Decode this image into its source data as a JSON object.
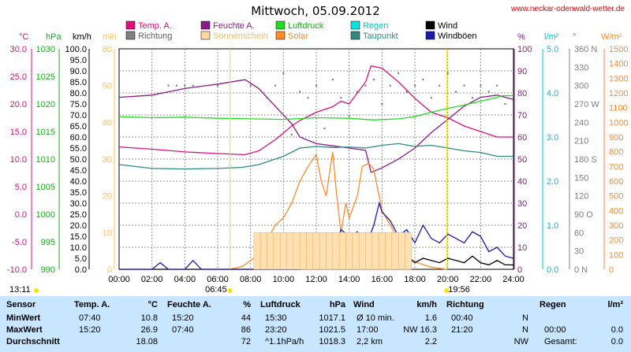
{
  "title": "Mittwoch, 05.09.2012",
  "site": "www.neckar-odenwald-wetter.de",
  "legend": [
    {
      "name": "Temp. A.",
      "color": "#e0107a"
    },
    {
      "name": "Feuchte A.",
      "color": "#8b1a8b"
    },
    {
      "name": "Luftdruck",
      "color": "#22dd22"
    },
    {
      "name": "Regen",
      "color": "#00e5e5"
    },
    {
      "name": "Wind",
      "color": "#000000"
    },
    {
      "name": "Richtung",
      "color": "#808080"
    },
    {
      "name": "Sonnenschein",
      "color": "#ffd8a0"
    },
    {
      "name": "Solar",
      "color": "#ff8c28"
    },
    {
      "name": "Taupunkt",
      "color": "#2e8b80"
    },
    {
      "name": "Windböen",
      "color": "#1a1aa8"
    }
  ],
  "axes": {
    "temp": {
      "unit": "°C",
      "ticks": [
        "30.0",
        "25.0",
        "20.0",
        "15.0",
        "10.0",
        "5.0",
        "0.0",
        "-5.0",
        "-10.0"
      ],
      "color": "#e0107a"
    },
    "press": {
      "unit": "hPa",
      "ticks": [
        "1030",
        "1025",
        "1020",
        "1015",
        "1010",
        "1005",
        "1000",
        "995",
        "990"
      ],
      "color": "#22aa22"
    },
    "wind": {
      "unit": "km/h",
      "ticks": [
        "100.0",
        "95.0",
        "90.0",
        "85.0",
        "80.0",
        "75.0",
        "70.0",
        "65.0",
        "60.0",
        "55.0",
        "50.0",
        "45.0",
        "40.0",
        "35.0",
        "30.0",
        "25.0",
        "20.0",
        "15.0",
        "10.0",
        "5.0",
        "0.0"
      ],
      "color": "#000000"
    },
    "sun": {
      "unit": "min",
      "ticks": [
        "60",
        "50",
        "40",
        "30",
        "20",
        "10",
        "0"
      ],
      "color": "#ffc060"
    },
    "hum": {
      "unit": "%",
      "ticks": [
        "100",
        "90",
        "80",
        "70",
        "60",
        "50",
        "40",
        "30",
        "20",
        "10",
        "0"
      ],
      "color": "#8b1a8b"
    },
    "rain": {
      "unit": "l/m²",
      "ticks": [
        "5.0",
        "4.0",
        "3.0",
        "2.0",
        "1.0",
        "0.0"
      ],
      "color": "#00c8c8"
    },
    "dir": {
      "unit": "°",
      "ticks": [
        "360 N",
        "330",
        "300",
        "270 W",
        "240",
        "210",
        "180 S",
        "150",
        "120",
        "90 O",
        "60",
        "30",
        "0 N"
      ],
      "color": "#808080"
    },
    "solar": {
      "unit": "W/m²",
      "ticks": [
        "1500",
        "1400",
        "1300",
        "1200",
        "1100",
        "1000",
        "900",
        "800",
        "700",
        "600",
        "500",
        "400",
        "300",
        "200",
        "100",
        "0"
      ],
      "color": "#ff8c28"
    },
    "time": [
      "00:00",
      "02:00",
      "04:00",
      "06:00",
      "08:00",
      "10:00",
      "12:00",
      "14:00",
      "16:00",
      "18:00",
      "20:00",
      "22:00",
      "24:00"
    ]
  },
  "sun_events": {
    "sunrise": "06:45",
    "sunset": "19:56",
    "daylength": "13:11"
  },
  "chart_data": {
    "type": "line",
    "x_unit": "hour",
    "series": [
      {
        "name": "Temp. A.",
        "axis": "temp",
        "values": [
          [
            0,
            12.2
          ],
          [
            2,
            11.8
          ],
          [
            4,
            11.3
          ],
          [
            6,
            11.0
          ],
          [
            7.67,
            10.8
          ],
          [
            8.5,
            11.5
          ],
          [
            9.5,
            13.5
          ],
          [
            10.5,
            16.0
          ],
          [
            11,
            17.0
          ],
          [
            12,
            18.5
          ],
          [
            13,
            19.5
          ],
          [
            13.5,
            20.5
          ],
          [
            14,
            20.0
          ],
          [
            14.5,
            22.0
          ],
          [
            15,
            24.0
          ],
          [
            15.33,
            26.9
          ],
          [
            16,
            26.5
          ],
          [
            17,
            24.0
          ],
          [
            18,
            21.0
          ],
          [
            19,
            18.5
          ],
          [
            20,
            17.5
          ],
          [
            21,
            16.0
          ],
          [
            22,
            15.0
          ],
          [
            23,
            14.0
          ],
          [
            24,
            14.0
          ]
        ]
      },
      {
        "name": "Feuchte A.",
        "axis": "hum",
        "values": [
          [
            0,
            78
          ],
          [
            2,
            79
          ],
          [
            4,
            82
          ],
          [
            6,
            84
          ],
          [
            7.67,
            86
          ],
          [
            8.5,
            82
          ],
          [
            9.5,
            74
          ],
          [
            10.5,
            66
          ],
          [
            11,
            60
          ],
          [
            12,
            57
          ],
          [
            13,
            56
          ],
          [
            14,
            55
          ],
          [
            15,
            54
          ],
          [
            15.33,
            44
          ],
          [
            16,
            46
          ],
          [
            17,
            50
          ],
          [
            18,
            55
          ],
          [
            19,
            62
          ],
          [
            20,
            68
          ],
          [
            21,
            74
          ],
          [
            22,
            78
          ],
          [
            23,
            79
          ],
          [
            24,
            77
          ]
        ]
      },
      {
        "name": "Luftdruck",
        "axis": "press",
        "values": [
          [
            0,
            1017.7
          ],
          [
            2,
            1017.5
          ],
          [
            4,
            1017.6
          ],
          [
            6,
            1017.4
          ],
          [
            8,
            1017.3
          ],
          [
            10,
            1017.2
          ],
          [
            12,
            1017.5
          ],
          [
            14,
            1017.4
          ],
          [
            15.5,
            1017.1
          ],
          [
            17,
            1017.3
          ],
          [
            18,
            1017.7
          ],
          [
            19,
            1018.5
          ],
          [
            20,
            1019.2
          ],
          [
            21,
            1019.8
          ],
          [
            22,
            1020.5
          ],
          [
            23,
            1021.2
          ],
          [
            23.33,
            1021.5
          ],
          [
            24,
            1021.5
          ]
        ]
      },
      {
        "name": "Taupunkt",
        "axis": "temp",
        "values": [
          [
            0,
            9.0
          ],
          [
            2,
            8.3
          ],
          [
            4,
            8.2
          ],
          [
            6,
            8.3
          ],
          [
            7.5,
            8.5
          ],
          [
            8.5,
            9.0
          ],
          [
            10,
            10.5
          ],
          [
            11,
            12.0
          ],
          [
            12,
            12.3
          ],
          [
            13,
            12.1
          ],
          [
            14,
            12.2
          ],
          [
            15,
            12.0
          ],
          [
            16,
            12.5
          ],
          [
            17,
            12.8
          ],
          [
            18,
            12.3
          ],
          [
            19,
            12.5
          ],
          [
            20,
            12.0
          ],
          [
            21,
            11.5
          ],
          [
            22,
            11.2
          ],
          [
            23,
            10.5
          ],
          [
            24,
            10.5
          ]
        ]
      },
      {
        "name": "Solar",
        "axis": "solar",
        "values": [
          [
            6.75,
            0
          ],
          [
            7.5,
            20
          ],
          [
            8.5,
            100
          ],
          [
            9.5,
            300
          ],
          [
            10,
            350
          ],
          [
            10.5,
            450
          ],
          [
            11,
            600
          ],
          [
            11.5,
            700
          ],
          [
            12,
            780
          ],
          [
            12.3,
            600
          ],
          [
            12.6,
            500
          ],
          [
            13,
            800
          ],
          [
            13.2,
            550
          ],
          [
            13.5,
            250
          ],
          [
            13.8,
            450
          ],
          [
            14,
            350
          ],
          [
            14.5,
            500
          ],
          [
            14.8,
            700
          ],
          [
            15.2,
            720
          ],
          [
            15.5,
            680
          ],
          [
            16,
            400
          ],
          [
            16.5,
            300
          ],
          [
            17,
            200
          ],
          [
            17.5,
            100
          ],
          [
            18,
            50
          ],
          [
            19,
            15
          ],
          [
            19.93,
            0
          ]
        ]
      },
      {
        "name": "Wind",
        "axis": "wind",
        "values": [
          [
            0,
            0
          ],
          [
            1,
            0
          ],
          [
            2,
            0
          ],
          [
            3,
            0
          ],
          [
            4,
            0
          ],
          [
            5,
            0
          ],
          [
            6,
            0
          ],
          [
            7,
            0
          ],
          [
            8,
            0
          ],
          [
            9,
            0
          ],
          [
            10,
            0
          ],
          [
            11,
            0
          ],
          [
            11.5,
            0.5
          ],
          [
            12,
            4
          ],
          [
            12.5,
            6
          ],
          [
            13,
            2
          ],
          [
            13.5,
            8
          ],
          [
            14,
            4
          ],
          [
            14.5,
            6
          ],
          [
            15,
            5
          ],
          [
            15.5,
            3
          ],
          [
            16,
            10
          ],
          [
            16.5,
            7
          ],
          [
            17,
            5
          ],
          [
            17.5,
            6
          ],
          [
            18,
            3
          ],
          [
            18.5,
            5
          ],
          [
            19,
            4
          ],
          [
            19.5,
            3
          ],
          [
            20,
            5
          ],
          [
            20.5,
            4
          ],
          [
            21,
            3
          ],
          [
            21.5,
            6
          ],
          [
            22,
            3
          ],
          [
            22.5,
            2
          ],
          [
            23,
            4
          ],
          [
            23.5,
            2
          ],
          [
            24,
            2
          ]
        ]
      },
      {
        "name": "Windböen",
        "axis": "wind",
        "values": [
          [
            0,
            0
          ],
          [
            1,
            0
          ],
          [
            2,
            0
          ],
          [
            2.5,
            3
          ],
          [
            3,
            0
          ],
          [
            4,
            0
          ],
          [
            4.5,
            4
          ],
          [
            5,
            0
          ],
          [
            6,
            0
          ],
          [
            8,
            0
          ],
          [
            11,
            0
          ],
          [
            11.5,
            3
          ],
          [
            12,
            8
          ],
          [
            12.5,
            12
          ],
          [
            13,
            6
          ],
          [
            13.5,
            18
          ],
          [
            14,
            15
          ],
          [
            14.5,
            17
          ],
          [
            15,
            10
          ],
          [
            15.5,
            20
          ],
          [
            15.83,
            30
          ],
          [
            16,
            26
          ],
          [
            16.5,
            22
          ],
          [
            17,
            15
          ],
          [
            17.5,
            18
          ],
          [
            18,
            12
          ],
          [
            18.5,
            20
          ],
          [
            19,
            14
          ],
          [
            19.5,
            12
          ],
          [
            20,
            16
          ],
          [
            20.5,
            14
          ],
          [
            21,
            12
          ],
          [
            21.5,
            17
          ],
          [
            22,
            15
          ],
          [
            22.5,
            8
          ],
          [
            23,
            10
          ],
          [
            23.5,
            6
          ],
          [
            24,
            5
          ]
        ]
      },
      {
        "name": "Sonnenschein",
        "axis": "sun",
        "type": "bar",
        "values": [
          [
            8.2,
            10
          ],
          [
            8.6,
            10
          ],
          [
            9.0,
            10
          ],
          [
            9.4,
            10
          ],
          [
            9.8,
            10
          ],
          [
            10.2,
            10
          ],
          [
            10.6,
            10
          ],
          [
            11.0,
            10
          ],
          [
            11.4,
            10
          ],
          [
            11.8,
            10
          ],
          [
            12.2,
            10
          ],
          [
            12.6,
            10
          ],
          [
            13.0,
            10
          ],
          [
            13.4,
            10
          ],
          [
            13.8,
            10
          ],
          [
            14.2,
            10
          ],
          [
            14.6,
            10
          ],
          [
            15.0,
            10
          ],
          [
            15.4,
            10
          ],
          [
            15.8,
            10
          ],
          [
            16.2,
            10
          ],
          [
            16.6,
            10
          ],
          [
            17.0,
            10
          ],
          [
            17.4,
            10
          ]
        ]
      },
      {
        "name": "Richtung",
        "axis": "dir",
        "type": "scatter",
        "values": [
          [
            3,
            300
          ],
          [
            3.5,
            300
          ],
          [
            4,
            300
          ],
          [
            4.5,
            300
          ],
          [
            6,
            300
          ],
          [
            8,
            300
          ],
          [
            9,
            280
          ],
          [
            9.5,
            300
          ],
          [
            10,
            320
          ],
          [
            10.5,
            220
          ],
          [
            11,
            290
          ],
          [
            11.5,
            280
          ],
          [
            12,
            300
          ],
          [
            12.5,
            230
          ],
          [
            13,
            310
          ],
          [
            13.5,
            280
          ],
          [
            14,
            250
          ],
          [
            14.5,
            290
          ],
          [
            15,
            300
          ],
          [
            15.5,
            310
          ],
          [
            16,
            270
          ],
          [
            16.5,
            300
          ],
          [
            17,
            320
          ],
          [
            17.5,
            290
          ],
          [
            18,
            300
          ],
          [
            18.5,
            310
          ],
          [
            19,
            280
          ],
          [
            19.5,
            300
          ],
          [
            20,
            320
          ],
          [
            20.5,
            290
          ],
          [
            21,
            300
          ],
          [
            21.5,
            280
          ],
          [
            22,
            300
          ],
          [
            22.5,
            290
          ],
          [
            23,
            300
          ],
          [
            23.5,
            270
          ]
        ]
      }
    ]
  },
  "stats": {
    "headers": {
      "sensor": "Sensor",
      "temp": "Temp. A.",
      "temp_u": "°C",
      "hum": "Feuchte A.",
      "hum_u": "%",
      "press": "Luftdruck",
      "press_u": "hPa",
      "wind": "Wind",
      "wind_u": "km/h",
      "dir": "Richtung",
      "rain": "Regen",
      "rain_u": "l/m²"
    },
    "rows": [
      {
        "label": "MinWert",
        "temp_t": "07:40",
        "temp_v": "10.8",
        "hum_t": "15:20",
        "hum_v": "44",
        "press_t": "15:30",
        "press_v": "1017.1",
        "wind_t": "Ø 10 min.",
        "wind_v": "1.6",
        "dir_t": "00:40",
        "dir_v": "N",
        "rain_t": "",
        "rain_v": ""
      },
      {
        "label": "MaxWert",
        "temp_t": "15:20",
        "temp_v": "26.9",
        "hum_t": "07:40",
        "hum_v": "86",
        "press_t": "23:20",
        "press_v": "1021.5",
        "wind_t": "17:00",
        "wind_v": "NW 16.3",
        "dir_t": "21:20",
        "dir_v": "N",
        "rain_t": "00:00",
        "rain_v": "0.0"
      },
      {
        "label": "Durchschnitt",
        "temp_t": "",
        "temp_v": "18.08",
        "hum_t": "",
        "hum_v": "72",
        "press_t": "^1.1hPa/h",
        "press_v": "1018.3",
        "wind_t": "2,2 km",
        "wind_v": "2.2",
        "dir_t": "",
        "dir_v": "NW",
        "rain_t": "Gesamt:",
        "rain_v": "0.0"
      }
    ]
  }
}
